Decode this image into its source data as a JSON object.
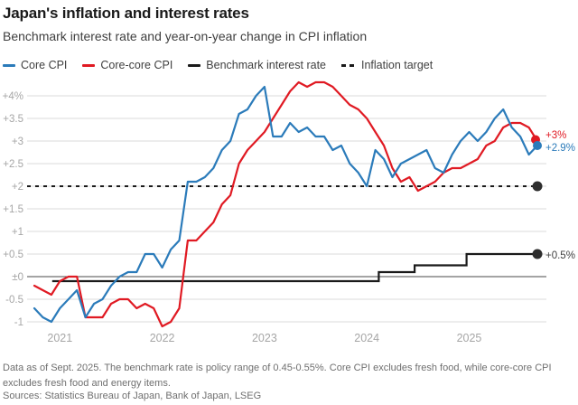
{
  "header": {
    "title": "Japan's inflation and interest rates",
    "subtitle": "Benchmark interest rate and year-on-year change in CPI inflation"
  },
  "legend": [
    {
      "label": "Core CPI",
      "color": "#2b7bba",
      "style": "solid"
    },
    {
      "label": "Core-core CPI",
      "color": "#e01a23",
      "style": "solid"
    },
    {
      "label": "Benchmark interest rate",
      "color": "#1a1a1a",
      "style": "solid"
    },
    {
      "label": "Inflation target",
      "color": "#1a1a1a",
      "style": "dashed"
    }
  ],
  "chart_data": {
    "type": "line",
    "x_interval": "month",
    "x_start": "2020-10",
    "x_end": "2025-09",
    "x_tick_labels": [
      "2021",
      "2022",
      "2023",
      "2024",
      "2025"
    ],
    "y_ticks": [
      {
        "value": 4,
        "label": "+4%"
      },
      {
        "value": 3.5,
        "label": "+3.5"
      },
      {
        "value": 3,
        "label": "+3"
      },
      {
        "value": 2.5,
        "label": "+2.5"
      },
      {
        "value": 2,
        "label": "+2"
      },
      {
        "value": 1.5,
        "label": "+1.5"
      },
      {
        "value": 1,
        "label": "+1"
      },
      {
        "value": 0.5,
        "label": "+0.5"
      },
      {
        "value": 0,
        "label": "±0"
      },
      {
        "value": -0.5,
        "label": "-0.5"
      },
      {
        "value": -1,
        "label": "-1"
      }
    ],
    "ylim": [
      -1.25,
      4.45
    ],
    "grid": "horizontal",
    "legend_position": "top",
    "series": [
      {
        "name": "Core CPI",
        "color": "#2b7bba",
        "type": "line",
        "end_label": "+2.9%",
        "values": [
          -0.7,
          -0.9,
          -1.0,
          -0.7,
          -0.5,
          -0.3,
          -0.9,
          -0.6,
          -0.5,
          -0.2,
          0.0,
          0.1,
          0.1,
          0.5,
          0.5,
          0.2,
          0.6,
          0.8,
          2.1,
          2.1,
          2.2,
          2.4,
          2.8,
          3.0,
          3.6,
          3.7,
          4.0,
          4.2,
          3.1,
          3.1,
          3.4,
          3.2,
          3.3,
          3.1,
          3.1,
          2.8,
          2.9,
          2.5,
          2.3,
          2.0,
          2.8,
          2.6,
          2.2,
          2.5,
          2.6,
          2.7,
          2.8,
          2.4,
          2.3,
          2.7,
          3.0,
          3.2,
          3.0,
          3.2,
          3.5,
          3.7,
          3.3,
          3.1,
          2.7,
          2.9
        ]
      },
      {
        "name": "Core-core CPI",
        "color": "#e01a23",
        "type": "line",
        "end_label": "+3%",
        "values": [
          -0.2,
          -0.3,
          -0.4,
          -0.1,
          0.0,
          0.0,
          -0.9,
          -0.9,
          -0.9,
          -0.6,
          -0.5,
          -0.5,
          -0.7,
          -0.6,
          -0.7,
          -1.1,
          -1.0,
          -0.7,
          0.8,
          0.8,
          1.0,
          1.2,
          1.6,
          1.8,
          2.5,
          2.8,
          3.0,
          3.2,
          3.5,
          3.8,
          4.1,
          4.3,
          4.2,
          4.3,
          4.3,
          4.2,
          4.0,
          3.8,
          3.7,
          3.5,
          3.2,
          2.9,
          2.4,
          2.1,
          2.2,
          1.9,
          2.0,
          2.1,
          2.3,
          2.4,
          2.4,
          2.5,
          2.6,
          2.9,
          3.0,
          3.3,
          3.4,
          3.4,
          3.3,
          3.0
        ]
      },
      {
        "name": "Benchmark interest rate",
        "color": "#1a1a1a",
        "type": "step",
        "end_label": "+0.5%",
        "step_points": [
          [
            2.1,
            -0.1
          ],
          [
            40.4,
            -0.1
          ],
          [
            40.4,
            0.1
          ],
          [
            44.6,
            0.1
          ],
          [
            44.6,
            0.25
          ],
          [
            50.7,
            0.25
          ],
          [
            50.7,
            0.5
          ],
          [
            59,
            0.5
          ]
        ]
      },
      {
        "name": "Inflation target",
        "color": "#1a1a1a",
        "type": "target",
        "value": 2
      }
    ]
  },
  "footnotes": {
    "note": "Data as of Sept. 2025. The benchmark rate is policy range of 0.45-0.55%. Core CPI excludes fresh food, while core-core CPI excludes fresh food and energy items.",
    "sources": "Sources: Statistics Bureau of Japan, Bank of Japan, LSEG"
  }
}
